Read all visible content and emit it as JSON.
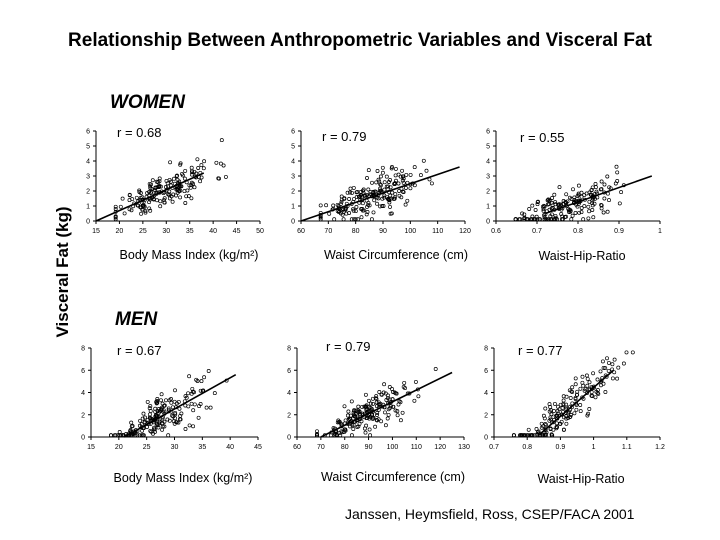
{
  "page": {
    "title": "Relationship Between Anthropometric Variables and Visceral Fat",
    "women_label": "WOMEN",
    "men_label": "MEN",
    "shared_ylabel": "Visceral Fat (kg)",
    "citation": "Janssen, Heymsfield,  Ross, CSEP/FACA 2001"
  },
  "chart_data": [
    {
      "id": "women-bmi",
      "type": "scatter",
      "group": "WOMEN",
      "annotation": "r = 0.68",
      "xlabel": "Body Mass Index (kg/m²)",
      "ylabel": "Visceral Fat (kg)",
      "xlim": [
        15,
        50
      ],
      "ylim": [
        0,
        6
      ],
      "xticks": [
        "15",
        "20",
        "25",
        "30",
        "35",
        "40",
        "45",
        "50"
      ],
      "yticks": [
        "0",
        "1",
        "2",
        "3",
        "4",
        "5",
        "6"
      ],
      "trend": {
        "x": [
          15,
          38
        ],
        "y": [
          0,
          3.2
        ]
      },
      "n_points": 180,
      "seed": 11
    },
    {
      "id": "women-waist",
      "type": "scatter",
      "group": "WOMEN",
      "annotation": "r = 0.79",
      "xlabel": "Waist Circumference (cm)",
      "ylabel": "Visceral Fat (kg)",
      "xlim": [
        60,
        120
      ],
      "ylim": [
        0,
        6
      ],
      "xticks": [
        "60",
        "70",
        "80",
        "90",
        "100",
        "110",
        "120"
      ],
      "yticks": [
        "0",
        "1",
        "2",
        "3",
        "4",
        "5",
        "6"
      ],
      "trend": {
        "x": [
          60,
          118
        ],
        "y": [
          0,
          3.6
        ]
      },
      "n_points": 200,
      "seed": 23
    },
    {
      "id": "women-whr",
      "type": "scatter",
      "group": "WOMEN",
      "annotation": "r = 0.55",
      "xlabel": "Waist-Hip-Ratio",
      "ylabel": "Visceral Fat (kg)",
      "xlim": [
        0.6,
        1.0
      ],
      "ylim": [
        0,
        6
      ],
      "xticks": [
        "0.6",
        "0.7",
        "0.8",
        "0.9",
        "1"
      ],
      "yticks": [
        "0",
        "1",
        "2",
        "3",
        "4",
        "5",
        "6"
      ],
      "trend": {
        "x": [
          0.72,
          0.98
        ],
        "y": [
          0.5,
          3.0
        ]
      },
      "n_points": 190,
      "seed": 37
    },
    {
      "id": "men-bmi",
      "type": "scatter",
      "group": "MEN",
      "annotation": "r = 0.67",
      "xlabel": "Body Mass Index (kg/m²)",
      "ylabel": "Visceral Fat (kg)",
      "xlim": [
        15,
        45
      ],
      "ylim": [
        0,
        8
      ],
      "xticks": [
        "15",
        "20",
        "25",
        "30",
        "35",
        "40",
        "45"
      ],
      "yticks": [
        "0",
        "2",
        "4",
        "6",
        "8"
      ],
      "trend": {
        "x": [
          21,
          41
        ],
        "y": [
          0,
          5.6
        ]
      },
      "n_points": 190,
      "seed": 41
    },
    {
      "id": "men-waist",
      "type": "scatter",
      "group": "MEN",
      "annotation": "r = 0.79",
      "xlabel": "Waist Circumference (cm)",
      "ylabel": "Visceral Fat (kg)",
      "xlim": [
        60,
        130
      ],
      "ylim": [
        0,
        8
      ],
      "xticks": [
        "60",
        "70",
        "80",
        "90",
        "100",
        "110",
        "120",
        "130"
      ],
      "yticks": [
        "0",
        "2",
        "4",
        "6",
        "8"
      ],
      "trend": {
        "x": [
          70,
          125
        ],
        "y": [
          0,
          5.8
        ]
      },
      "n_points": 200,
      "seed": 53
    },
    {
      "id": "men-whr",
      "type": "scatter",
      "group": "MEN",
      "annotation": "r = 0.77",
      "xlabel": "Waist-Hip-Ratio",
      "ylabel": "Visceral Fat (kg)",
      "xlim": [
        0.7,
        1.2
      ],
      "ylim": [
        0,
        8
      ],
      "xticks": [
        "0.7",
        "0.8",
        "0.9",
        "1",
        "1.1",
        "1.2"
      ],
      "yticks": [
        "0",
        "2",
        "4",
        "6",
        "8"
      ],
      "trend": {
        "x": [
          0.84,
          1.06
        ],
        "y": [
          0.3,
          6.0
        ]
      },
      "n_points": 190,
      "seed": 67
    }
  ]
}
